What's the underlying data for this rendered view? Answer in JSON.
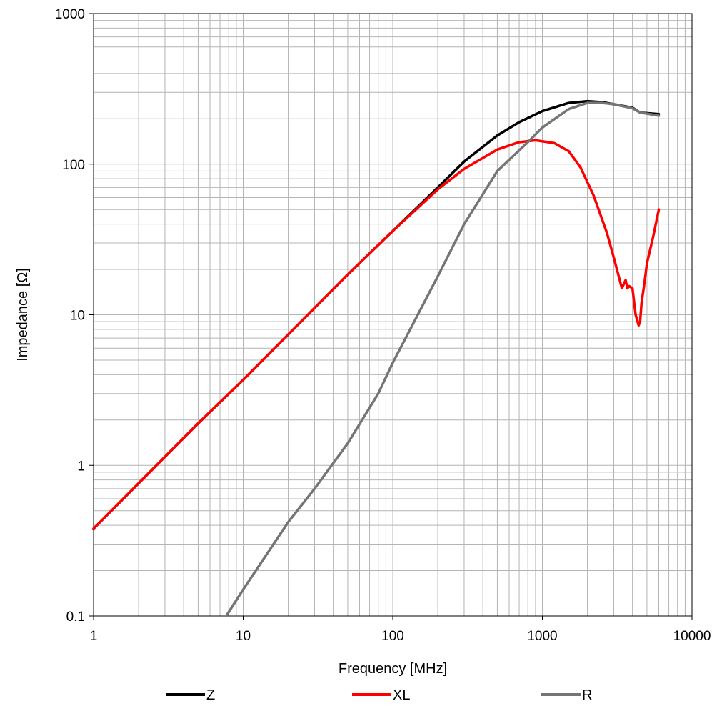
{
  "chart_data": {
    "type": "line",
    "title": "",
    "xlabel": "Frequency [MHz]",
    "ylabel": "Impedance [Ω]",
    "x_scale": "log",
    "y_scale": "log",
    "xlim": [
      1,
      10000
    ],
    "ylim": [
      0.1,
      1000
    ],
    "x_ticks": [
      1,
      10,
      100,
      1000,
      10000
    ],
    "x_tick_labels": [
      "1",
      "10",
      "100",
      "1000",
      "10000"
    ],
    "y_ticks": [
      0.1,
      1,
      10,
      100,
      1000
    ],
    "y_tick_labels": [
      "0.1",
      "1",
      "10",
      "100",
      "1000"
    ],
    "grid": true,
    "legend_position": "bottom",
    "series": [
      {
        "name": "Z",
        "color": "#000000",
        "x": [
          1,
          2,
          5,
          10,
          20,
          50,
          100,
          200,
          300,
          500,
          700,
          1000,
          1500,
          2000,
          2500,
          3000,
          4000,
          4500,
          6000
        ],
        "y": [
          0.38,
          0.76,
          1.9,
          3.7,
          7.4,
          18.5,
          36,
          70,
          104,
          155,
          190,
          225,
          255,
          262,
          258,
          250,
          237,
          220,
          215
        ]
      },
      {
        "name": "XL",
        "color": "#ff0000",
        "x": [
          1,
          2,
          5,
          10,
          20,
          50,
          100,
          200,
          300,
          500,
          700,
          900,
          1200,
          1500,
          1800,
          2200,
          2700,
          3000,
          3400,
          3600,
          3700,
          3800,
          4000,
          4200,
          4400,
          4500,
          4600,
          4800,
          5000,
          5500,
          6000
        ],
        "y": [
          0.38,
          0.76,
          1.9,
          3.7,
          7.4,
          18.5,
          36,
          68,
          93,
          125,
          140,
          144,
          138,
          122,
          95,
          62,
          35,
          24,
          15,
          17,
          15,
          15.5,
          15,
          10,
          8.5,
          9,
          12,
          16,
          22,
          33,
          50
        ]
      },
      {
        "name": "R",
        "color": "#757575",
        "x": [
          7.7,
          10,
          20,
          30,
          50,
          80,
          100,
          200,
          300,
          500,
          800,
          1000,
          1500,
          2000,
          2500,
          3000,
          4000,
          4500,
          6000
        ],
        "y": [
          0.1,
          0.15,
          0.42,
          0.7,
          1.4,
          3,
          4.8,
          18,
          40,
          90,
          140,
          175,
          232,
          255,
          255,
          250,
          235,
          220,
          210
        ]
      }
    ]
  }
}
